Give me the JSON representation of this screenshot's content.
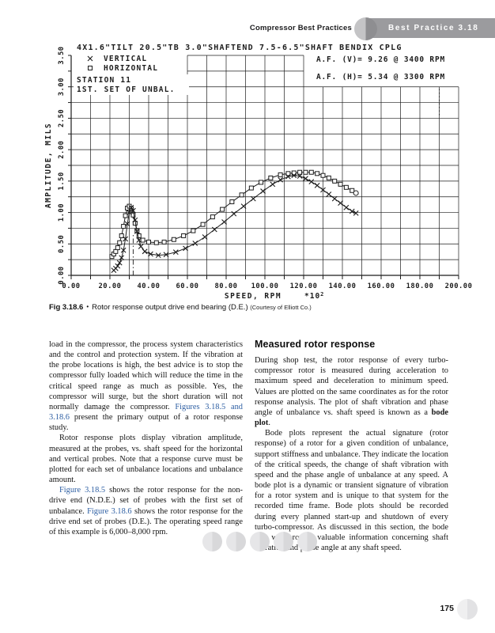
{
  "header": {
    "running_title": "Compressor Best Practices",
    "badge_title": "Best Practice 3.18"
  },
  "chart_data": {
    "type": "line",
    "title": "4X1.6\"TILT 20.5\"TB 3.0\"SHAFTEND 7.5-6.5\"SHAFT BENDIX CPLG",
    "xlabel": "SPEED, RPM",
    "x_unit_multiplier": "*10",
    "x_unit_exponent": "2",
    "ylabel": "AMPLITUDE, MILS",
    "xlim": [
      0,
      200
    ],
    "ylim": [
      0,
      3.5
    ],
    "x_tick_labels": [
      "0.00",
      "20.00",
      "40.00",
      "60.00",
      "80.00",
      "100.00",
      "120.00",
      "140.00",
      "160.00",
      "180.00",
      "200.00"
    ],
    "y_tick_labels": [
      "0.00",
      "0.50",
      "1.00",
      "1.50",
      "2.00",
      "2.50",
      "3.00",
      "3.50"
    ],
    "grid": {
      "x_step": 10,
      "y_step": 0.25,
      "full_grid_top": 3.0,
      "upper_patch": {
        "x_range": [
          60,
          120
        ],
        "y_range": [
          3.0,
          3.5
        ]
      }
    },
    "legend": [
      {
        "marker": "x",
        "label": "VERTICAL"
      },
      {
        "marker": "square",
        "label": "HORIZONTAL"
      }
    ],
    "annotations": {
      "station": "STATION 11",
      "unbalance_set": "1ST. SET OF UNBAL.",
      "af_lines": [
        "A.F.  (V)=  9.26    @  3400   RPM",
        "A.F.  (H)=  5.34    @  3300   RPM"
      ]
    },
    "reference_lines": [
      {
        "x": 32,
        "y_range": [
          0,
          0.65
        ],
        "style": "dash-dot"
      },
      {
        "x": 190,
        "y_range": [
          2.55,
          3.0
        ],
        "style": "dotted"
      }
    ],
    "series": [
      {
        "name": "HORIZONTAL",
        "marker": "square",
        "end_marker": "circle",
        "points": [
          [
            21,
            0.3
          ],
          [
            22,
            0.34
          ],
          [
            23,
            0.38
          ],
          [
            24,
            0.44
          ],
          [
            25,
            0.52
          ],
          [
            26,
            0.63
          ],
          [
            27,
            0.78
          ],
          [
            28,
            0.95
          ],
          [
            29,
            1.07
          ],
          [
            30,
            1.1
          ],
          [
            31,
            1.06
          ],
          [
            32,
            0.96
          ],
          [
            33,
            0.83
          ],
          [
            34,
            0.71
          ],
          [
            35,
            0.63
          ],
          [
            37,
            0.56
          ],
          [
            40,
            0.53
          ],
          [
            44,
            0.52
          ],
          [
            48,
            0.53
          ],
          [
            53,
            0.57
          ],
          [
            58,
            0.63
          ],
          [
            63,
            0.71
          ],
          [
            68,
            0.81
          ],
          [
            73,
            0.93
          ],
          [
            78,
            1.05
          ],
          [
            83,
            1.17
          ],
          [
            88,
            1.28
          ],
          [
            93,
            1.39
          ],
          [
            98,
            1.48
          ],
          [
            103,
            1.55
          ],
          [
            108,
            1.6
          ],
          [
            112,
            1.62
          ],
          [
            115,
            1.63
          ],
          [
            118,
            1.64
          ],
          [
            121,
            1.64
          ],
          [
            124,
            1.64
          ],
          [
            127,
            1.62
          ],
          [
            130,
            1.59
          ],
          [
            133,
            1.55
          ],
          [
            136,
            1.5
          ],
          [
            139,
            1.45
          ],
          [
            142,
            1.4
          ],
          [
            145,
            1.35
          ],
          [
            147,
            1.31
          ]
        ]
      },
      {
        "name": "VERTICAL",
        "marker": "x",
        "end_marker": "x",
        "points": [
          [
            22,
            0.08
          ],
          [
            23,
            0.11
          ],
          [
            24,
            0.15
          ],
          [
            25,
            0.2
          ],
          [
            26,
            0.28
          ],
          [
            27,
            0.4
          ],
          [
            28,
            0.58
          ],
          [
            29,
            0.82
          ],
          [
            30,
            1.0
          ],
          [
            31,
            1.08
          ],
          [
            32,
            1.03
          ],
          [
            33,
            0.88
          ],
          [
            34,
            0.7
          ],
          [
            35,
            0.56
          ],
          [
            36,
            0.46
          ],
          [
            38,
            0.38
          ],
          [
            41,
            0.34
          ],
          [
            45,
            0.32
          ],
          [
            49,
            0.33
          ],
          [
            54,
            0.37
          ],
          [
            59,
            0.43
          ],
          [
            64,
            0.51
          ],
          [
            69,
            0.61
          ],
          [
            74,
            0.73
          ],
          [
            79,
            0.85
          ],
          [
            84,
            0.98
          ],
          [
            89,
            1.1
          ],
          [
            94,
            1.22
          ],
          [
            99,
            1.34
          ],
          [
            104,
            1.45
          ],
          [
            108,
            1.52
          ],
          [
            112,
            1.57
          ],
          [
            115,
            1.59
          ],
          [
            118,
            1.58
          ],
          [
            121,
            1.54
          ],
          [
            124,
            1.49
          ],
          [
            127,
            1.43
          ],
          [
            130,
            1.36
          ],
          [
            133,
            1.29
          ],
          [
            136,
            1.22
          ],
          [
            139,
            1.15
          ],
          [
            142,
            1.08
          ],
          [
            145,
            1.02
          ],
          [
            147,
            0.99
          ]
        ]
      }
    ]
  },
  "figure_caption": {
    "label": "Fig 3.18.6",
    "bullet": "•",
    "text": "Rotor response output drive end bearing (D.E.)",
    "courtesy": "(Courtesy of Elliott Co.)"
  },
  "left_column": {
    "paragraphs": [
      {
        "indent": false,
        "segments": [
          {
            "t": "load in the compressor, the process system characteristics and the control and protection system. If the vibration at the probe locations is high, the best advice is to stop the compressor fully loaded which will reduce the time in the critical speed range as much as possible. Yes, the compressor will surge, but the short duration will not normally damage the compressor. "
          },
          {
            "t": "Figures 3.18.5 and 3.18.6",
            "link": true
          },
          {
            "t": " present the primary output of a rotor response study."
          }
        ]
      },
      {
        "indent": true,
        "segments": [
          {
            "t": "Rotor response plots display vibration amplitude, measured at the probes, vs. shaft speed for the horizontal and vertical probes. Note that a response curve must be plotted for each set of unbalance locations and unbalance amount."
          }
        ]
      },
      {
        "indent": true,
        "segments": [
          {
            "t": "Figure 3.18.5",
            "link": true
          },
          {
            "t": " shows the rotor response for the non-drive end (N.D.E.) set of probes with the first set of unbalance. "
          },
          {
            "t": "Figure 3.18.6",
            "link": true
          },
          {
            "t": " shows the rotor response for the drive end set of probes (D.E.). The operating speed range of this example is 6,000–8,000 rpm."
          }
        ]
      }
    ]
  },
  "right_column": {
    "heading": "Measured rotor response",
    "paragraphs": [
      {
        "indent": false,
        "segments": [
          {
            "t": "During shop test, the rotor response of every turbo-compressor rotor is measured during acceleration to maximum speed and deceleration to minimum speed. Values are plotted on the same coordinates as for the rotor response analysis. The plot of shaft vibration and phase angle of unbalance vs. shaft speed is known as a "
          },
          {
            "t": "bode plot",
            "bold": true
          },
          {
            "t": "."
          }
        ]
      },
      {
        "indent": true,
        "segments": [
          {
            "t": "Bode plots represent the actual signature (rotor response) of a rotor for a given condition of unbalance, support stiffness and unbalance. They indicate the location of the critical speeds, the change of shaft vibration with speed and the phase angle of unbalance at any speed. A bode plot is a dynamic or transient signature of vibration for a rotor system and is unique to that system for the recorded time frame. Bode plots should be recorded during every planned start-up and shutdown of every turbo-compressor. As discussed in this section, the bode plot will provide valuable information concerning shaft vibration and phase angle at any shaft speed."
          }
        ]
      }
    ]
  },
  "footer": {
    "page_number": "175",
    "deco_circle_count": 5
  },
  "colors": {
    "banner_gray": "#9b9b9e",
    "banner_circle_left": "#c4c4c6",
    "banner_circle_right": "#8e8e91",
    "link_blue": "#2e5fa3",
    "ink": "#141414",
    "chart_ink": "#1c1c1c",
    "footer_circle_left": "#e6e6e8",
    "footer_circle_right": "#d8d8da",
    "page_circle_left": "#efeff0",
    "page_circle_right": "#e2e2e4"
  }
}
